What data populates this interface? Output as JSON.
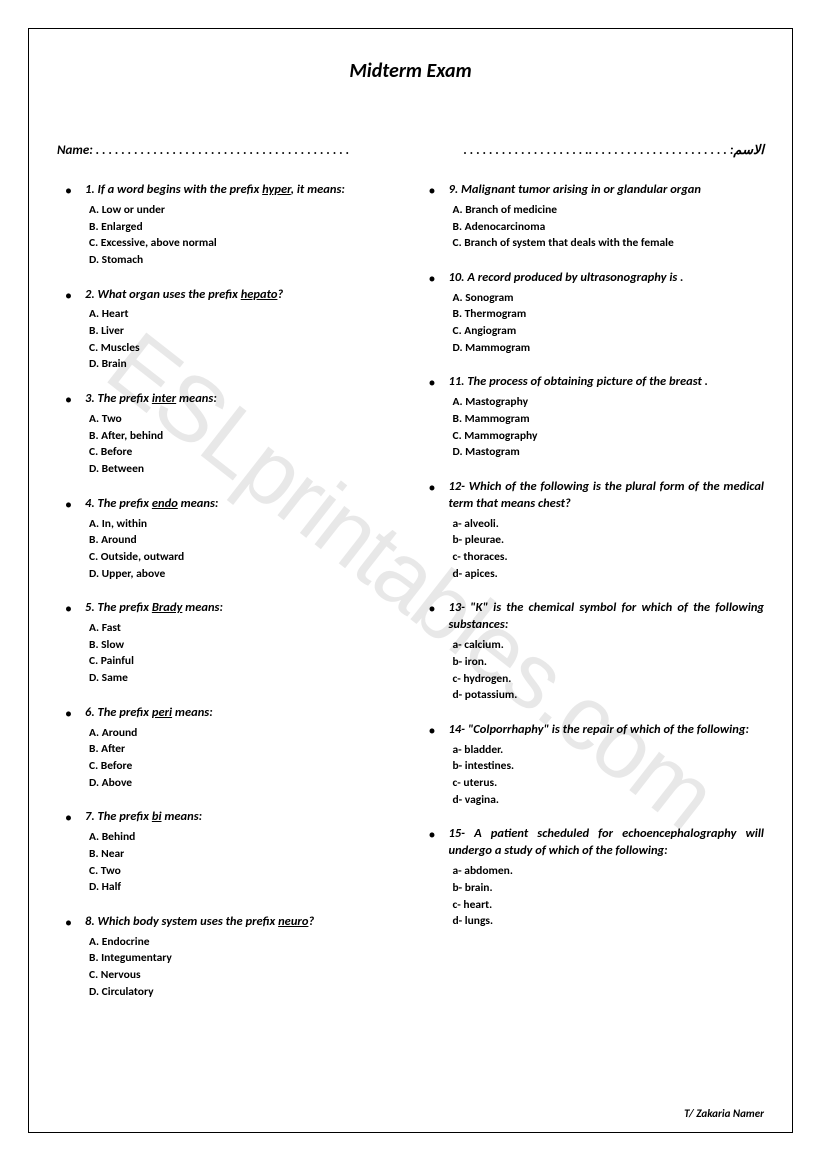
{
  "title": "Midterm Exam",
  "name_label": "Name: . . . . . . . . . . . . . . . . . . . . . . . . . . . . . .   . . . . . . . . . .",
  "arabic_label": "الاسم: . . . . . . . . . . . . . . . . . . . . . .. . . . . . . . . . . . . . . . . . . .",
  "watermark": "ESLprintables.com",
  "footer": "T/ Zakaria Namer",
  "left": [
    {
      "num": "1.",
      "text_pre": "If a word begins with the prefix ",
      "underline": "hyper",
      "text_post": ", it means:",
      "options": [
        "A. Low or under",
        "B. Enlarged",
        "C. Excessive, above normal",
        "D. Stomach"
      ]
    },
    {
      "num": "2.",
      "text_pre": "What organ uses the prefix ",
      "underline": "hepato",
      "text_post": "?",
      "options": [
        "A. Heart",
        "B. Liver",
        "C. Muscles",
        "D. Brain"
      ]
    },
    {
      "num": "3.",
      "text_pre": " The prefix ",
      "underline": "inter",
      "text_post": " means:",
      "options": [
        "A. Two",
        "B. After, behind",
        "C. Before",
        "D. Between"
      ]
    },
    {
      "num": "4.",
      "text_pre": "The prefix ",
      "underline": "endo",
      "text_post": " means:",
      "options": [
        "A. In, within",
        "B. Around",
        "C. Outside, outward",
        "D. Upper, above"
      ]
    },
    {
      "num": "5.",
      "text_pre": "The prefix ",
      "underline": "Brady",
      "text_post": " means:",
      "options": [
        "A. Fast",
        "B. Slow",
        "C. Painful",
        "D. Same"
      ]
    },
    {
      "num": "6.",
      "text_pre": "The prefix ",
      "underline": "peri",
      "text_post": " means:",
      "options": [
        "A. Around",
        "B. After",
        "C. Before",
        "D. Above"
      ]
    },
    {
      "num": "7.",
      "text_pre": "The prefix ",
      "underline": "bi",
      "text_post": " means:",
      "options": [
        "A. Behind",
        "B. Near",
        "C. Two",
        "D. Half"
      ]
    },
    {
      "num": "8.",
      "text_pre": "Which body system uses the prefix ",
      "underline": "neuro",
      "text_post": "?",
      "options": [
        "A. Endocrine",
        "B. Integumentary",
        "C. Nervous",
        "D. Circulatory"
      ]
    }
  ],
  "right": [
    {
      "num": "9.",
      "text_pre": "Malignant tumor arising in or glandular organ",
      "underline": "",
      "text_post": "",
      "options": [
        "A. Branch of medicine",
        "B. Adenocarcinoma",
        "C. Branch of system that deals with the female"
      ]
    },
    {
      "num": "10.",
      "text_pre": "A record produced by ultrasonography is .",
      "underline": "",
      "text_post": "",
      "options": [
        "A. Sonogram",
        "B. Thermogram",
        "C. Angiogram",
        "D. Mammogram"
      ]
    },
    {
      "num": "11.",
      "text_pre": "The process of obtaining picture of the breast .",
      "underline": "",
      "text_post": "",
      "options": [
        "A. Mastography",
        "B. Mammogram",
        "C. Mammography",
        "D. Mastogram"
      ]
    },
    {
      "num": "12-",
      "text_pre": "Which of the following is the plural form of the medical term that means chest?",
      "underline": "",
      "text_post": "",
      "options": [
        "a- alveoli.",
        "b- pleurae.",
        "c- thoraces.",
        "d- apices."
      ]
    },
    {
      "num": " 13-",
      "text_pre": "\"K\" is the chemical symbol for which of the following substances:",
      "underline": "",
      "text_post": "",
      "options": [
        "a- calcium.",
        "b- iron.",
        "c- hydrogen.",
        "d- potassium."
      ]
    },
    {
      "num": " 14-",
      "text_pre": "\"Colporrhaphy\" is the repair of which of the following:",
      "underline": "",
      "text_post": "",
      "options": [
        "a- bladder.",
        "b- intestines.",
        "c- uterus.",
        "d- vagina."
      ]
    },
    {
      "num": "15-",
      "text_pre": "    A    patient    scheduled    for echoencephalography will undergo a study of which of the following:",
      "underline": "",
      "text_post": "",
      "options": [
        "a- abdomen.",
        "b- brain.",
        "c- heart.",
        "d- lungs."
      ]
    }
  ]
}
